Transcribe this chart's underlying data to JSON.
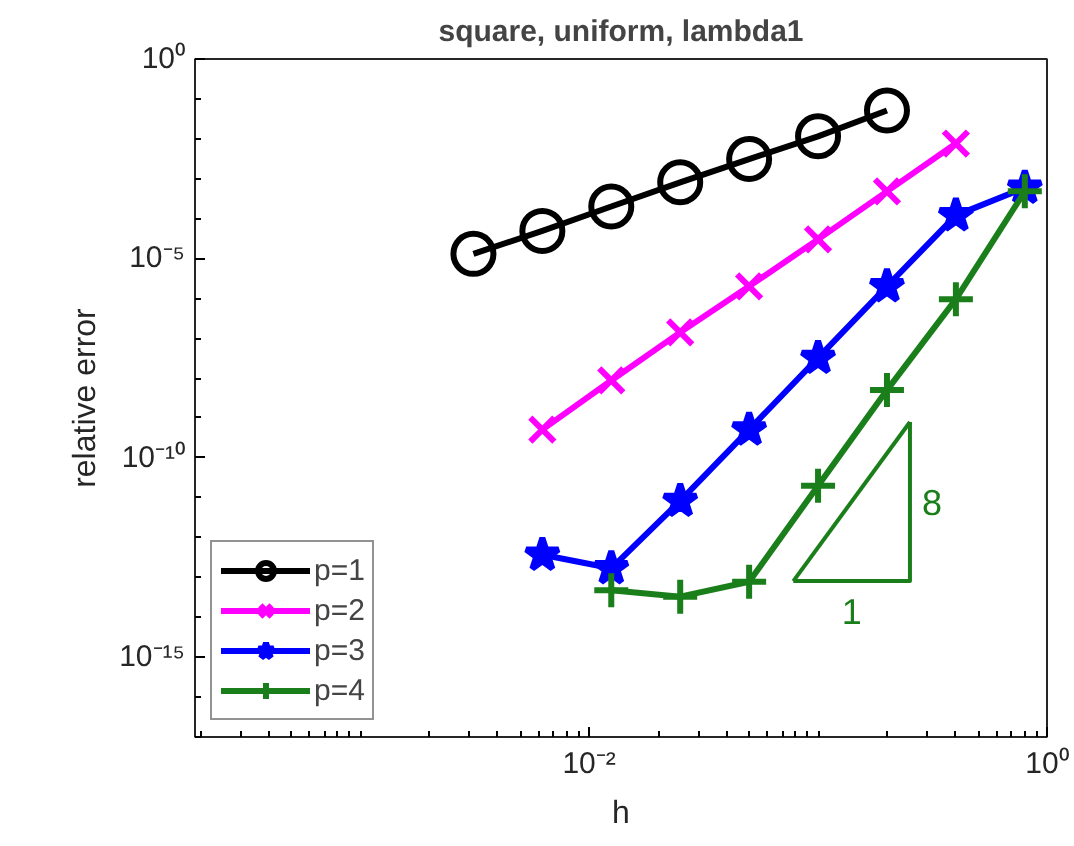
{
  "chart_data": {
    "type": "line",
    "title": "square, uniform, lambda1",
    "xlabel": "h",
    "ylabel": "relative error",
    "log": "xy",
    "grid": false,
    "legend": "bottom left",
    "xlim": [
      0.00019,
      1
    ],
    "ylim": [
      1e-17,
      1
    ],
    "xticks": [
      {
        "value": 0.01,
        "label": "10⁻²"
      },
      {
        "value": 1,
        "label": "10⁰"
      }
    ],
    "yticks": [
      {
        "value": 1e-15,
        "label": "10⁻¹⁵"
      },
      {
        "value": 1e-10,
        "label": "10⁻¹⁰"
      },
      {
        "value": 1e-05,
        "label": "10⁻⁵"
      },
      {
        "value": 1,
        "label": "10⁰"
      }
    ],
    "series": [
      {
        "name": "p=1",
        "color": "#000000",
        "marker": "circle",
        "x": [
          0.003125,
          0.00625,
          0.0125,
          0.025,
          0.05,
          0.1,
          0.2
        ],
        "values": [
          1.3e-05,
          4.9e-05,
          0.0002,
          0.00081,
          0.0031,
          0.0115,
          0.051
        ]
      },
      {
        "name": "p=2",
        "color": "#ff00ff",
        "marker": "x",
        "x": [
          0.00625,
          0.0125,
          0.025,
          0.05,
          0.1,
          0.2,
          0.4
        ],
        "values": [
          5.1e-10,
          8.7e-09,
          1.4e-07,
          2e-06,
          3e-05,
          0.00048,
          0.0076
        ]
      },
      {
        "name": "p=3",
        "color": "#0000ff",
        "marker": "star",
        "x": [
          0.00625,
          0.0125,
          0.025,
          0.05,
          0.1,
          0.2,
          0.4,
          0.8
        ],
        "values": [
          3.7e-13,
          1.7e-13,
          8.3e-12,
          5.1e-10,
          3.2e-08,
          2e-06,
          0.00012,
          0.00059
        ]
      },
      {
        "name": "p=4",
        "color": "#1a7f1a",
        "marker": "cross",
        "x": [
          0.0125,
          0.025,
          0.05,
          0.1,
          0.2,
          0.4,
          0.8
        ],
        "values": [
          4.8e-14,
          3.3e-14,
          7.8e-14,
          2e-11,
          5e-09,
          9.5e-07,
          0.00048
        ]
      },
      {
        "color": "#1a7f1a",
        "marker": "none",
        "x": [
          0.078,
          0.252,
          0.252
        ],
        "values": [
          8.1e-14,
          8.1e-14,
          7.9e-10
        ]
      },
      {
        "color": "#1a7f1a",
        "marker": "none",
        "x": [
          0.078,
          0.252
        ],
        "values": [
          8.1e-14,
          7.9e-10
        ]
      }
    ],
    "annotations": [
      "8",
      "1"
    ]
  }
}
